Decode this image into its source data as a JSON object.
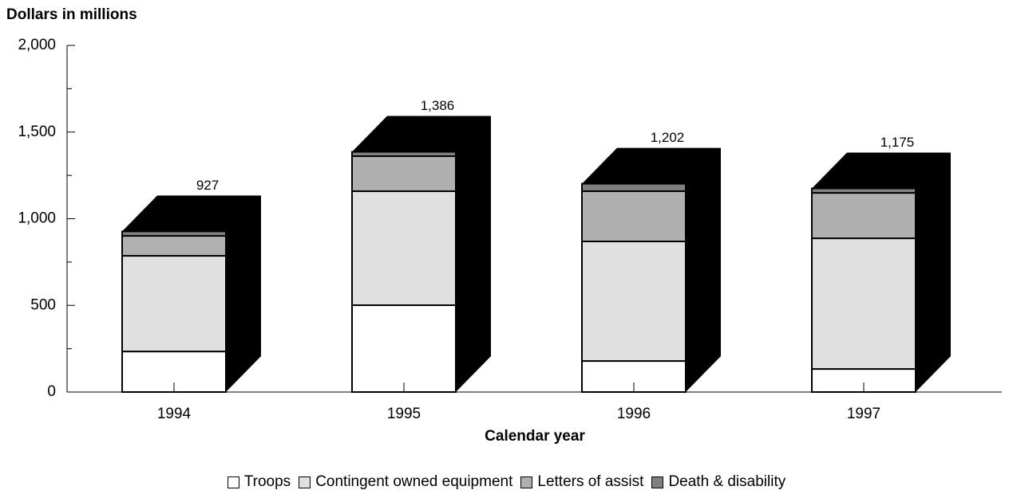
{
  "chart_data": {
    "type": "stacked_bar_3d",
    "y_axis_title": "Dollars in millions",
    "x_axis_title": "Calendar year",
    "categories": [
      "1994",
      "1995",
      "1996",
      "1997"
    ],
    "series": [
      {
        "name": "Troops",
        "color": "#ffffff",
        "values": [
          234,
          501,
          179,
          133
        ]
      },
      {
        "name": "Contingent owned equipment",
        "color": "#e0e0e0",
        "values": [
          552,
          658,
          690,
          754
        ]
      },
      {
        "name": "Letters of assist",
        "color": "#b0b0b0",
        "values": [
          115,
          202,
          290,
          262
        ]
      },
      {
        "name": "Death & disability",
        "color": "#808080",
        "values": [
          26,
          25,
          43,
          26
        ]
      }
    ],
    "totals": [
      927,
      1386,
      1202,
      1175
    ],
    "total_labels": [
      "927",
      "1,386",
      "1,202",
      "1,175"
    ],
    "extrusion_color": "#000000",
    "ylim": [
      0,
      2000
    ],
    "yticks": [
      0,
      {
        "value": 500,
        "label": "500"
      },
      {
        "value": 1000,
        "label": "1,000"
      },
      {
        "value": 1500,
        "label": "1,500"
      },
      {
        "value": 2000,
        "label": "2,000"
      }
    ],
    "yticks_minor": [
      250,
      750,
      1250,
      1750
    ],
    "legend": "bottom"
  }
}
